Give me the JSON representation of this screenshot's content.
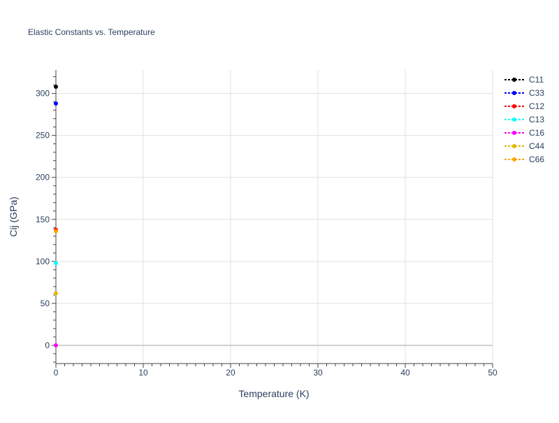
{
  "chart_data": {
    "type": "scatter",
    "title": "Elastic Constants vs. Temperature",
    "xlabel": "Temperature (K)",
    "ylabel": "Cij (GPa)",
    "xlim": [
      0,
      50
    ],
    "ylim": [
      -21.7,
      328
    ],
    "xticks": [
      0,
      10,
      20,
      30,
      40,
      50
    ],
    "yticks": [
      0,
      50,
      100,
      150,
      200,
      250,
      300
    ],
    "grid": true,
    "legend": "right",
    "series": [
      {
        "name": "C11",
        "color": "#000000",
        "x": [
          0
        ],
        "y": [
          308
        ]
      },
      {
        "name": "C33",
        "color": "#0000ff",
        "x": [
          0
        ],
        "y": [
          288
        ]
      },
      {
        "name": "C12",
        "color": "#ff0000",
        "x": [
          0
        ],
        "y": [
          137.5
        ]
      },
      {
        "name": "C13",
        "color": "#00ffff",
        "x": [
          0
        ],
        "y": [
          98
        ]
      },
      {
        "name": "C16",
        "color": "#ff00ff",
        "x": [
          0
        ],
        "y": [
          0
        ]
      },
      {
        "name": "C44",
        "color": "#e6b800",
        "x": [
          0
        ],
        "y": [
          62
        ]
      },
      {
        "name": "C66",
        "color": "#ffa500",
        "x": [
          0
        ],
        "y": [
          136
        ]
      }
    ]
  }
}
